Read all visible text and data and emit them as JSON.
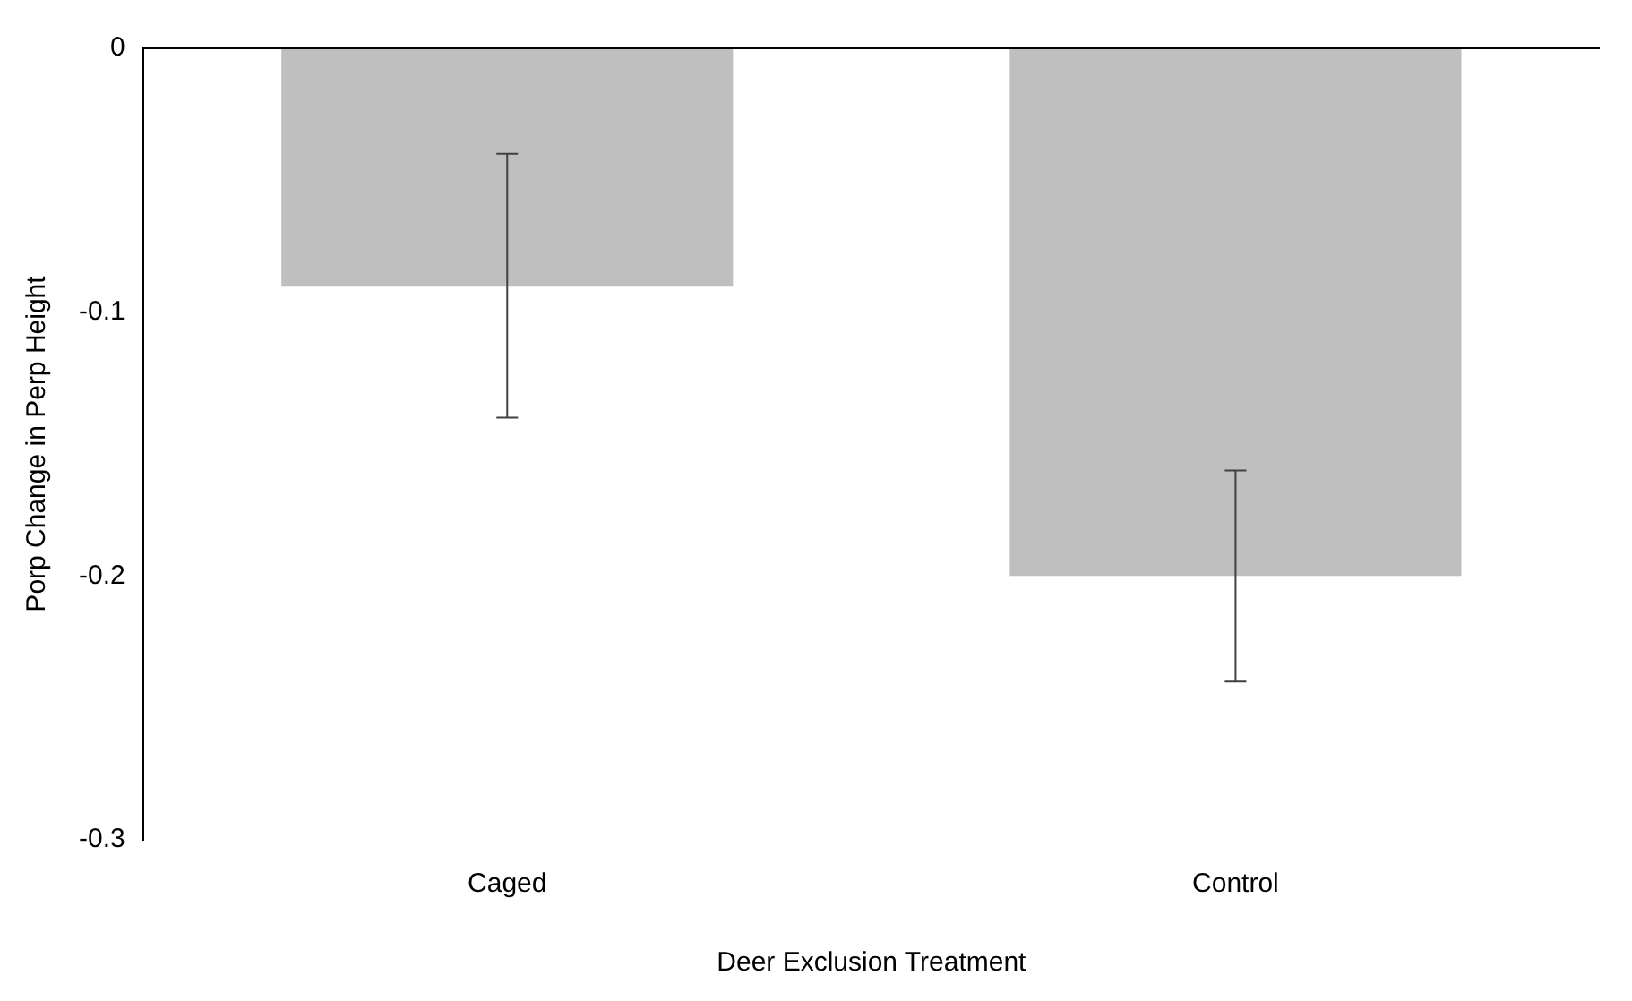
{
  "chart_data": {
    "type": "bar",
    "xlabel": "Deer Exclusion Treatment",
    "ylabel": "Porp Change in Perp Height",
    "categories": [
      "Caged",
      "Control"
    ],
    "values": [
      -0.09,
      -0.2
    ],
    "errors": [
      0.05,
      0.04
    ],
    "color": "#bfbfbf",
    "ylim": [
      -0.3,
      0
    ],
    "yticks": [
      0,
      -0.1,
      -0.2,
      -0.3
    ],
    "grid": false,
    "legend": false
  }
}
